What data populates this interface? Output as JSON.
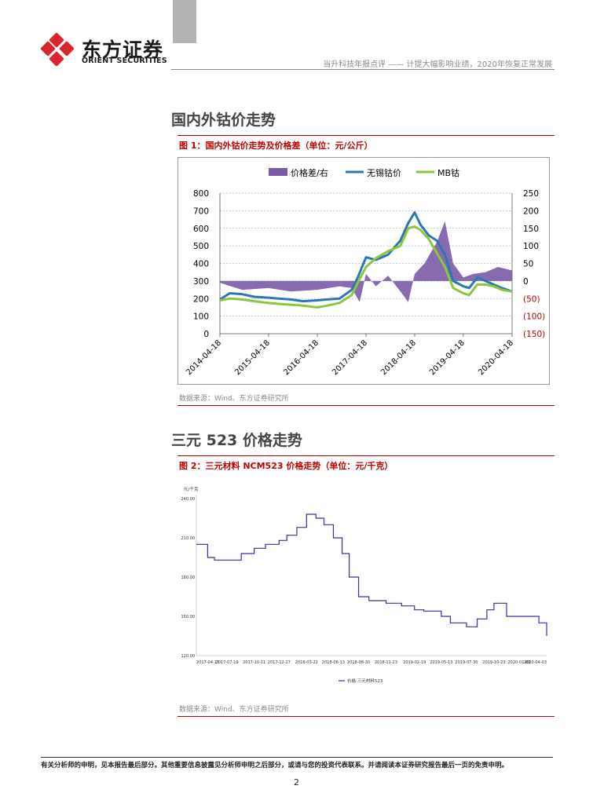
{
  "header": {
    "brand_cn": "东方证券",
    "brand_en": "ORIENT SECURITIES",
    "report_title": "当升科技年报点评 —— 计提大幅影响业绩，2020年恢复正常发展"
  },
  "section1": {
    "heading": "国内外钴价走势",
    "figure_title": "图 1：国内外钴价走势及价格差（单位：元/公斤）",
    "source": "数据来源：Wind、东方证券研究所"
  },
  "section2": {
    "heading": "三元 523 价格走势",
    "figure_title": "图 2：三元材料 NCM523 价格走势（单位：元/千克）",
    "source": "数据来源：Wind、东方证券研究所"
  },
  "footer": {
    "disclaimer": "有关分析师的申明，见本报告最后部分。其他重要信息披露见分析师申明之后部分，或请与您的投资代表联系。并请阅读本证券研究报告最后一页的免责申明。",
    "page_number": "2"
  },
  "colors": {
    "accent_red": "#c00000",
    "series_diff": "#7b5aa6",
    "series_wuxi": "#2e75b6",
    "series_mb": "#8cc63f",
    "ncm523_line": "#333399"
  },
  "chart_data": [
    {
      "type": "line",
      "legend": [
        "价格差/右",
        "无锡钴价",
        "MB钴"
      ],
      "legend_placement": "top",
      "x_tick_labels": [
        "2014-04-18",
        "2015-04-18",
        "2016-04-18",
        "2017-04-18",
        "2018-04-18",
        "2019-04-18",
        "2020-04-18"
      ],
      "x_range": [
        "2014-04-18",
        "2020-04-18"
      ],
      "y_left_ticks": [
        "0",
        "100",
        "200",
        "300",
        "400",
        "500",
        "600",
        "700",
        "800"
      ],
      "y_left_range": [
        0,
        800
      ],
      "y_right_ticks": [
        "250",
        "200",
        "150",
        "100",
        "50",
        "0",
        "(50)",
        "(100)",
        "(150)"
      ],
      "y_right_range": [
        -150,
        250
      ],
      "grid": true,
      "series": [
        {
          "name": "无锡钴价",
          "axis": "left",
          "x": [
            "2014-04-18",
            "2014-07-01",
            "2014-10-01",
            "2015-01-01",
            "2015-04-18",
            "2015-07-01",
            "2015-10-01",
            "2016-01-01",
            "2016-04-18",
            "2016-07-01",
            "2016-10-01",
            "2017-01-01",
            "2017-02-15",
            "2017-04-18",
            "2017-07-01",
            "2017-10-01",
            "2018-01-01",
            "2018-03-01",
            "2018-04-18",
            "2018-06-01",
            "2018-08-01",
            "2018-10-01",
            "2018-12-01",
            "2019-02-01",
            "2019-04-18",
            "2019-06-01",
            "2019-08-01",
            "2019-10-01",
            "2019-12-01",
            "2020-02-01",
            "2020-04-18"
          ],
          "y": [
            195,
            230,
            225,
            210,
            205,
            200,
            195,
            185,
            190,
            195,
            200,
            250,
            320,
            435,
            420,
            450,
            530,
            630,
            690,
            620,
            560,
            530,
            450,
            300,
            270,
            260,
            320,
            300,
            280,
            260,
            240
          ]
        },
        {
          "name": "MB钴",
          "axis": "left",
          "x": [
            "2014-04-18",
            "2014-07-01",
            "2014-10-01",
            "2015-01-01",
            "2015-04-18",
            "2015-07-01",
            "2015-10-01",
            "2016-01-01",
            "2016-04-18",
            "2016-07-01",
            "2016-10-01",
            "2017-01-01",
            "2017-02-15",
            "2017-04-18",
            "2017-07-01",
            "2017-10-01",
            "2018-01-01",
            "2018-03-01",
            "2018-04-18",
            "2018-06-01",
            "2018-08-01",
            "2018-10-01",
            "2018-12-01",
            "2019-02-01",
            "2019-04-18",
            "2019-06-01",
            "2019-08-01",
            "2019-10-01",
            "2019-12-01",
            "2020-02-01",
            "2020-04-18"
          ],
          "y": [
            190,
            200,
            195,
            185,
            175,
            170,
            165,
            160,
            150,
            160,
            175,
            220,
            290,
            380,
            430,
            470,
            500,
            600,
            610,
            590,
            540,
            460,
            380,
            260,
            230,
            220,
            280,
            280,
            270,
            250,
            240
          ]
        },
        {
          "name": "价格差/右",
          "axis": "right",
          "x": [
            "2014-04-18",
            "2014-10-01",
            "2015-04-18",
            "2015-10-01",
            "2016-04-18",
            "2016-10-01",
            "2017-01-01",
            "2017-03-01",
            "2017-04-18",
            "2017-07-01",
            "2017-10-01",
            "2018-01-01",
            "2018-03-01",
            "2018-04-18",
            "2018-07-01",
            "2018-10-01",
            "2018-12-01",
            "2019-02-01",
            "2019-04-18",
            "2019-07-01",
            "2019-10-01",
            "2020-01-01",
            "2020-04-18"
          ],
          "y": [
            -5,
            -25,
            -20,
            -30,
            -25,
            -15,
            -20,
            -60,
            20,
            -15,
            15,
            -30,
            -60,
            20,
            50,
            110,
            170,
            50,
            10,
            20,
            25,
            40,
            30
          ]
        }
      ]
    },
    {
      "type": "line",
      "ylabel": "元/千克",
      "legend": [
        "价格:三元材料523"
      ],
      "legend_placement": "bottom",
      "x_tick_labels": [
        "2017-04-15",
        "2017-07-19",
        "2017-10-11",
        "2017-12-27",
        "2018-03-22",
        "2018-06-13",
        "2018-08-30",
        "2018-11-23",
        "2019-02-19",
        "2019-05-13",
        "2019-07-30",
        "2019-10-23",
        "2020-01-09",
        "2020-04-03"
      ],
      "y_ticks": [
        "120.00",
        "150.00",
        "180.00",
        "210.00",
        "240.00"
      ],
      "y_range": [
        120,
        240
      ],
      "series": [
        {
          "name": "价格:三元材料523",
          "x": [
            "2017-04-15",
            "2017-05-20",
            "2017-06-10",
            "2017-07-19",
            "2017-09-01",
            "2017-10-11",
            "2017-11-15",
            "2017-12-27",
            "2018-01-20",
            "2018-02-20",
            "2018-03-22",
            "2018-04-20",
            "2018-05-15",
            "2018-06-13",
            "2018-07-10",
            "2018-08-01",
            "2018-08-30",
            "2018-10-01",
            "2018-11-23",
            "2019-01-10",
            "2019-02-19",
            "2019-03-20",
            "2019-05-13",
            "2019-06-10",
            "2019-07-30",
            "2019-09-01",
            "2019-10-01",
            "2019-10-23",
            "2019-12-01",
            "2020-01-09",
            "2020-02-15",
            "2020-03-10",
            "2020-04-03"
          ],
          "y": [
            205,
            195,
            193,
            193,
            198,
            202,
            205,
            208,
            212,
            218,
            228,
            225,
            220,
            210,
            198,
            180,
            165,
            162,
            160,
            158,
            155,
            154,
            150,
            145,
            142,
            148,
            155,
            160,
            150,
            150,
            150,
            145,
            135
          ]
        }
      ]
    }
  ]
}
